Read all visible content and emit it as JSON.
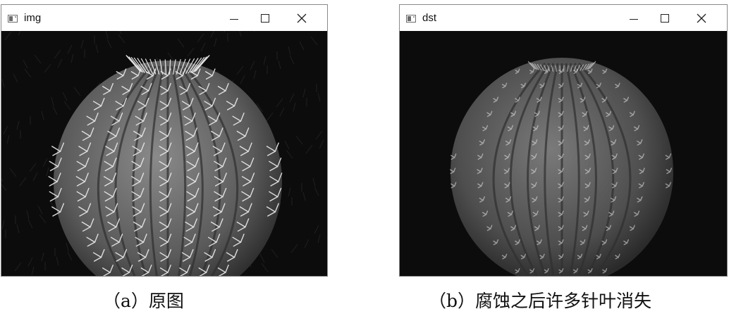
{
  "panels": [
    {
      "window": {
        "title": "img",
        "icon": "app-window-icon",
        "controls": [
          "minimize-icon",
          "maximize-icon",
          "close-icon"
        ]
      },
      "content": {
        "description_icon": "cactus-image"
      },
      "caption": "（a）原图"
    },
    {
      "window": {
        "title": "dst",
        "icon": "app-window-icon",
        "controls": [
          "minimize-icon",
          "maximize-icon",
          "close-icon"
        ]
      },
      "content": {
        "description_icon": "cactus-image-eroded"
      },
      "caption": "（b）腐蚀之后许多针叶消失"
    }
  ],
  "colors": {
    "image_background": "#0b0c0b",
    "cactus_body": "#6f6f6f",
    "spine": "#e6e6e6"
  }
}
